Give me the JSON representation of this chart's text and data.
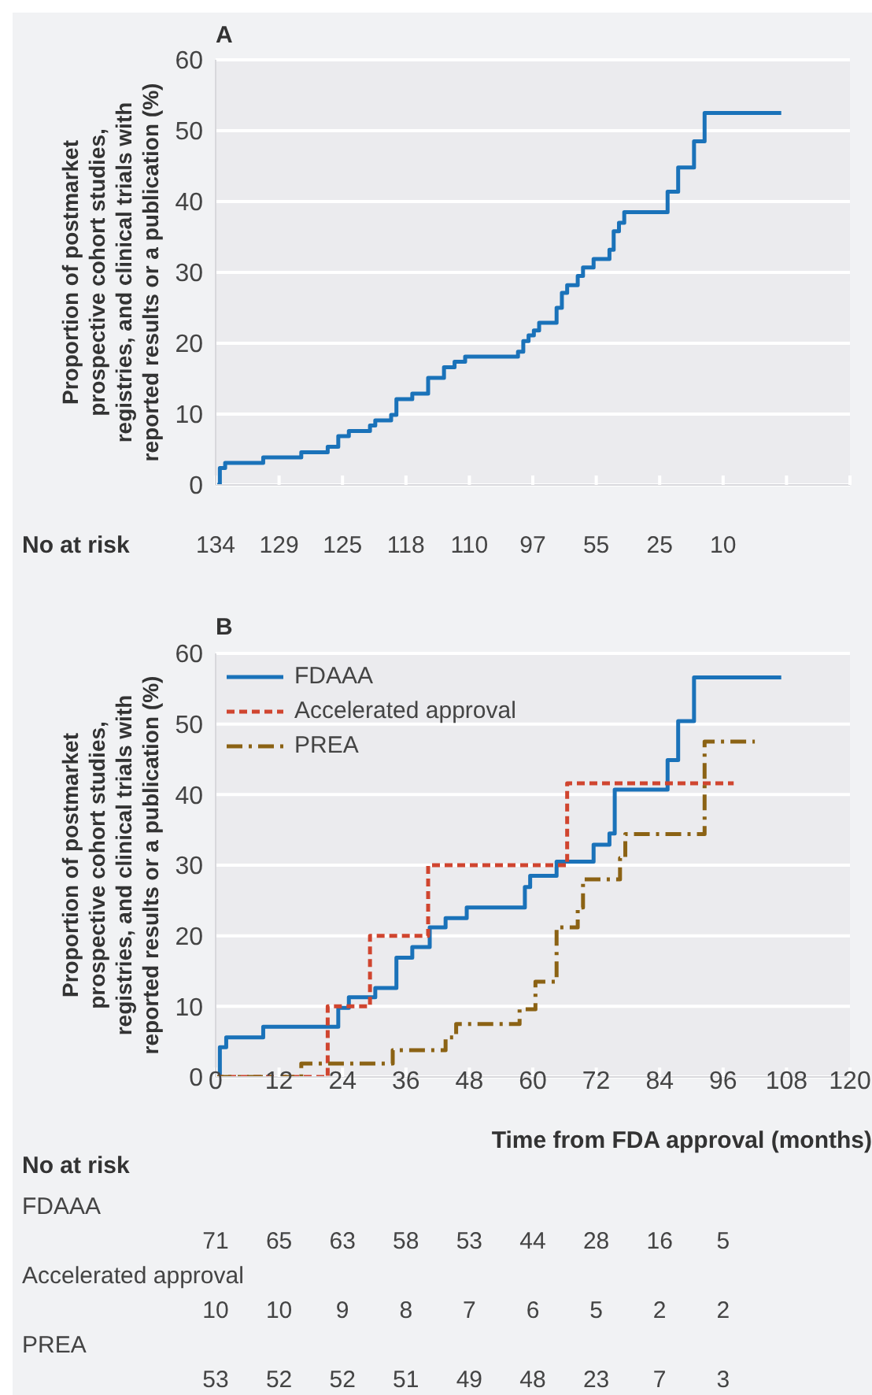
{
  "chart_data": [
    {
      "type": "step",
      "title": "A",
      "ylabel": "Proportion of postmarket\nprospective cohort studies,\nregistries, and clinical trials with\nreported results or a publication (%)",
      "xlim": [
        0,
        120
      ],
      "xticks": [
        0,
        12,
        24,
        36,
        48,
        60,
        72,
        84,
        96,
        108,
        120
      ],
      "ylim": [
        0,
        60
      ],
      "yticks": [
        0,
        10,
        20,
        30,
        40,
        50,
        60
      ],
      "grid": "y",
      "tick_labels": "y",
      "legend": false,
      "series": [
        {
          "color": "#1a72b9",
          "line_style": "solid",
          "x": [
            0,
            0.8,
            1.8,
            9,
            16.2,
            21.2,
            23.2,
            25.2,
            29.2,
            30.2,
            33.2,
            34.2,
            37.2,
            40.2,
            43.2,
            45.2,
            47.2,
            57.2,
            58.2,
            59.2,
            60.2,
            61.2,
            64.5,
            65.5,
            66.5,
            68.5,
            69.5,
            71.5,
            74.5,
            75.3,
            76.3,
            77.3,
            85.5,
            87.5,
            90.5,
            92.5,
            107
          ],
          "values": [
            0,
            2.4,
            3.1,
            3.9,
            4.6,
            5.4,
            6.9,
            7.6,
            8.4,
            9.1,
            9.9,
            12.1,
            12.9,
            15.1,
            16.6,
            17.4,
            18.1,
            18.8,
            20.3,
            21.1,
            21.8,
            22.9,
            25.0,
            27.1,
            28.2,
            29.5,
            30.7,
            31.9,
            33.2,
            35.8,
            37.0,
            38.5,
            41.4,
            44.8,
            48.5,
            52.5,
            52.5
          ]
        }
      ],
      "annotations": [
        "No at risk",
        "134 129 125 118 110 97 55 25 10"
      ]
    },
    {
      "type": "step",
      "title": "B",
      "ylabel": "Proportion of postmarket\nprospective cohort studies,\nregistries, and clinical trials with\nreported results or a publication (%)",
      "xlabel": "Time from FDA approval (months)",
      "xlim": [
        0,
        120
      ],
      "xticks": [
        0,
        12,
        24,
        36,
        48,
        60,
        72,
        84,
        96,
        108,
        120
      ],
      "ylim": [
        0,
        60
      ],
      "yticks": [
        0,
        10,
        20,
        30,
        40,
        50,
        60
      ],
      "grid": "y",
      "legend": "top left",
      "series": [
        {
          "name": "FDAAA",
          "color": "#1a72b9",
          "line_style": "solid",
          "x": [
            0,
            0.8,
            2,
            9,
            23.2,
            25.2,
            30.2,
            34.2,
            37.2,
            40.5,
            43.5,
            47.5,
            58.5,
            59.5,
            64.5,
            71.5,
            74.5,
            75.5,
            85.5,
            87.5,
            90.5,
            107
          ],
          "values": [
            0,
            4.2,
            5.6,
            7.1,
            9.8,
            11.3,
            12.6,
            16.9,
            18.4,
            21.2,
            22.5,
            24.0,
            26.9,
            28.5,
            30.5,
            32.9,
            34.5,
            40.7,
            44.9,
            50.4,
            56.6,
            56.6
          ]
        },
        {
          "name": "Accelerated approval",
          "color": "#d0452f",
          "line_style": "dashed",
          "x": [
            0,
            21.2,
            29.2,
            40.2,
            66.5,
            98
          ],
          "values": [
            0,
            10.0,
            20.0,
            30.0,
            41.6,
            41.6
          ]
        },
        {
          "name": "PREA",
          "color": "#8b6214",
          "line_style": "dashdot",
          "x": [
            0,
            16.2,
            33.5,
            43.5,
            45.5,
            57.5,
            60.5,
            64.5,
            68.5,
            69.5,
            76.5,
            77.5,
            92.5,
            102
          ],
          "values": [
            0,
            1.9,
            3.8,
            5.6,
            7.5,
            9.6,
            13.5,
            21.2,
            24.0,
            28.0,
            31.0,
            34.4,
            47.5,
            47.5
          ]
        }
      ],
      "annotations": [
        "No at risk",
        "FDAAA",
        "71 65 63 58 53 44 28 16 5",
        "Accelerated approval",
        "10 10 9 8 7 6 5 2 2",
        "PREA",
        "53 52 52 51 49 48 23 7 3"
      ]
    }
  ]
}
